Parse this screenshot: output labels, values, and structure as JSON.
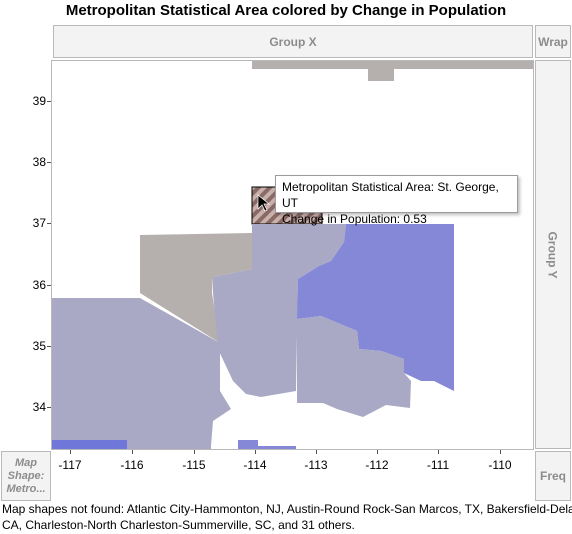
{
  "title": "Metropolitan Statistical Area colored by Change in Population",
  "zones": {
    "group_x": "Group X",
    "wrap": "Wrap",
    "group_y": "Group Y",
    "freq": "Freq",
    "map_shape": [
      "Map",
      "Shape:",
      "Metro..."
    ]
  },
  "axes": {
    "y_ticks": [
      "39",
      "38",
      "37",
      "36",
      "35",
      "34"
    ],
    "x_ticks": [
      "-117",
      "-116",
      "-115",
      "-114",
      "-113",
      "-112",
      "-111",
      "-110"
    ]
  },
  "tooltip": {
    "line1": "Metropolitan Statistical Area: St. George, UT",
    "line2": "Change in Population: 0.53"
  },
  "footer": {
    "line1": "Map shapes not found: Atlantic City-Hammonton, NJ, Austin-Round Rock-San Marcos, TX, Bakersfield-Delan",
    "line2": "CA, Charleston-North Charleston-Summerville, SC, and 31 others."
  },
  "colors": {
    "gray_region": "#b5b0ae",
    "light_blue": "#a9a9c6",
    "medium_blue": "#8588d6",
    "bright_blue": "#6f78d8",
    "highlight_dark": "#8a6a66",
    "highlight_light": "#c8b0ab"
  }
}
